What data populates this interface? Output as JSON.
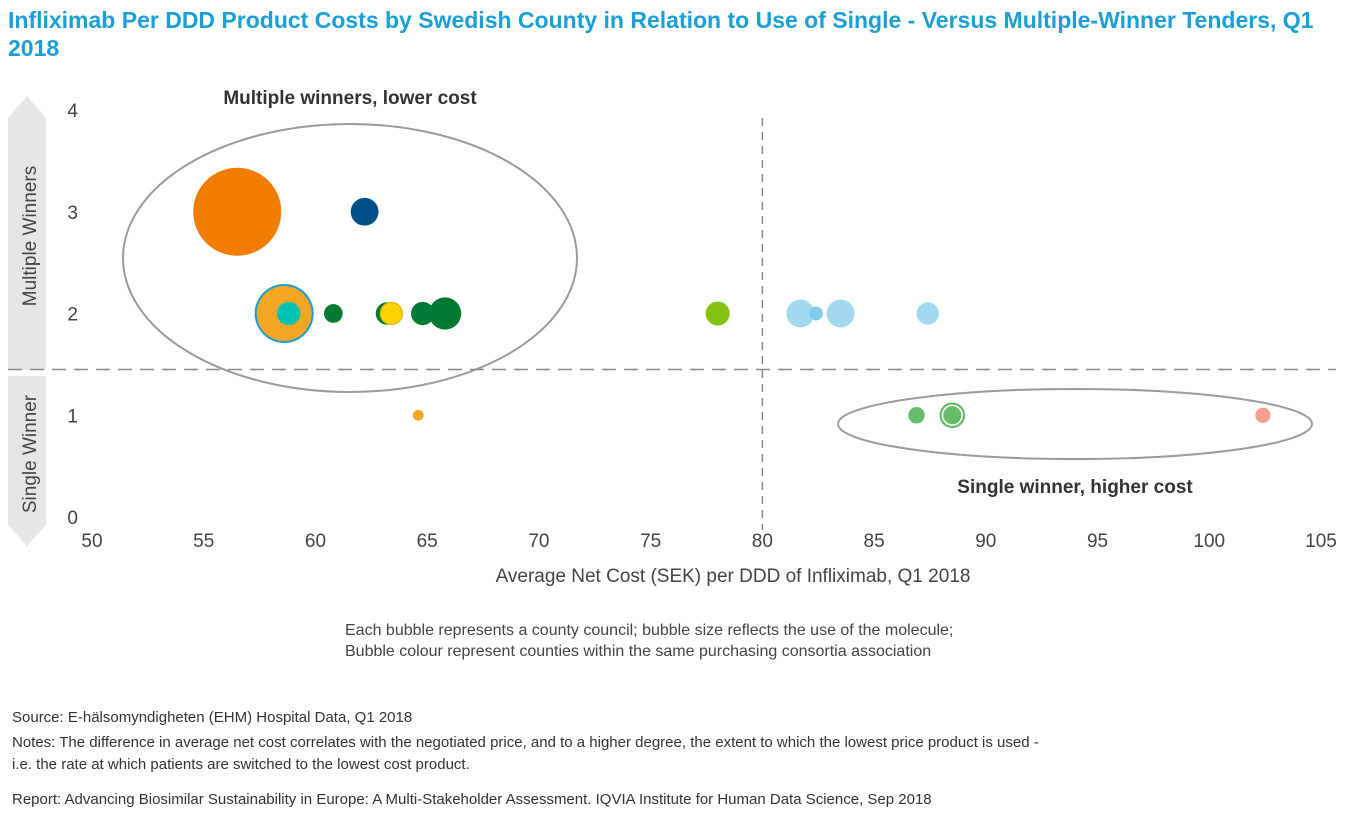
{
  "title": "Infliximab Per DDD Product Costs by Swedish County in Relation to Use of Single - Versus Multiple-Winner Tenders, Q1 2018",
  "chart_data": {
    "type": "scatter",
    "subtype": "bubble",
    "xlabel": "Average Net Cost (SEK) per DDD of Infliximab, Q1 2018",
    "xlim": [
      50,
      105
    ],
    "xticks": [
      50,
      55,
      60,
      65,
      70,
      75,
      80,
      85,
      90,
      95,
      100,
      105
    ],
    "ylim": [
      0,
      4
    ],
    "yticks": [
      0,
      1,
      2,
      3,
      4
    ],
    "y_categories": [
      {
        "label": "Multiple Winners",
        "range": [
          1.5,
          4
        ]
      },
      {
        "label": "Single Winner",
        "range": [
          0,
          1.5
        ]
      }
    ],
    "reference_lines": {
      "x": 80,
      "y": 1.45
    },
    "annotations": [
      "Multiple winners, lower cost",
      "Single winner, higher cost"
    ],
    "grid": false,
    "points": [
      {
        "x": 56.5,
        "y": 3,
        "size": 100,
        "color": "#f07d00"
      },
      {
        "x": 62.2,
        "y": 3,
        "size": 10,
        "color": "#004f89"
      },
      {
        "x": 58.6,
        "y": 2,
        "size": 45,
        "color": "#1a9fd6"
      },
      {
        "x": 58.6,
        "y": 2,
        "size": 39,
        "color": "#f5a623"
      },
      {
        "x": 58.8,
        "y": 2,
        "size": 7,
        "color": "#00c2b2"
      },
      {
        "x": 60.8,
        "y": 2,
        "size": 4.5,
        "color": "#007a33"
      },
      {
        "x": 63.2,
        "y": 2,
        "size": 6.5,
        "color": "#007a33"
      },
      {
        "x": 63.4,
        "y": 2,
        "size": 7,
        "color": "#e8b800"
      },
      {
        "x": 63.4,
        "y": 2,
        "size": 5.5,
        "color": "#ffd300"
      },
      {
        "x": 64.8,
        "y": 2,
        "size": 7,
        "color": "#007a33"
      },
      {
        "x": 65.8,
        "y": 2,
        "size": 13.5,
        "color": "#007a33"
      },
      {
        "x": 78.0,
        "y": 2,
        "size": 7.5,
        "color": "#86c211"
      },
      {
        "x": 81.7,
        "y": 2,
        "size": 10,
        "color": "#a2d9f0"
      },
      {
        "x": 82.4,
        "y": 2,
        "size": 2.5,
        "color": "#7fcbee"
      },
      {
        "x": 83.5,
        "y": 2,
        "size": 10,
        "color": "#a2d9f0"
      },
      {
        "x": 87.4,
        "y": 2,
        "size": 6.5,
        "color": "#a2d9f0"
      },
      {
        "x": 64.6,
        "y": 1,
        "size": 1.5,
        "color": "#f5a623"
      },
      {
        "x": 86.9,
        "y": 1,
        "size": 3.5,
        "color": "#66bb6a"
      },
      {
        "x": 88.5,
        "y": 1,
        "size": 8.5,
        "color": "#66bb6a",
        "ring": true
      },
      {
        "x": 102.4,
        "y": 1,
        "size": 3,
        "color": "#f5a08a"
      }
    ]
  },
  "legend": {
    "line1": "Each bubble represents a county council; bubble size reflects the use of the molecule;",
    "line2": "Bubble colour represent counties within the same purchasing consortia association",
    "bubble_color": "#c4c4c8"
  },
  "footer": {
    "source": "Source: E-hälsomyndigheten (EHM) Hospital Data, Q1 2018",
    "notes1": "Notes: The difference in average net cost correlates with the negotiated price, and to a higher degree, the extent to which the lowest price product is used -",
    "notes2": "i.e. the rate at which patients are switched to the lowest cost product.",
    "report": "Report: Advancing Biosimilar Sustainability in Europe: A Multi-Stakeholder Assessment. IQVIA Institute for Human Data Science, Sep 2018"
  }
}
